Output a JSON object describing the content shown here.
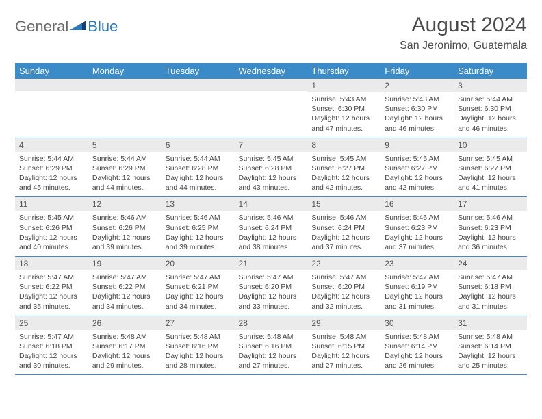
{
  "brand": {
    "part1": "General",
    "part2": "Blue"
  },
  "title": "August 2024",
  "location": "San Jeronimo, Guatemala",
  "colors": {
    "header_bg": "#3b8bc8",
    "header_text": "#ffffff",
    "daynum_bg": "#ebebeb",
    "body_text": "#444444",
    "rule": "#3b8bc8",
    "brand_gray": "#6a6a6a",
    "brand_blue": "#2b7bbf"
  },
  "day_headers": [
    "Sunday",
    "Monday",
    "Tuesday",
    "Wednesday",
    "Thursday",
    "Friday",
    "Saturday"
  ],
  "weeks": [
    [
      {
        "n": "",
        "sr": "",
        "ss": "",
        "dl": ""
      },
      {
        "n": "",
        "sr": "",
        "ss": "",
        "dl": ""
      },
      {
        "n": "",
        "sr": "",
        "ss": "",
        "dl": ""
      },
      {
        "n": "",
        "sr": "",
        "ss": "",
        "dl": ""
      },
      {
        "n": "1",
        "sr": "Sunrise: 5:43 AM",
        "ss": "Sunset: 6:30 PM",
        "dl": "Daylight: 12 hours and 47 minutes."
      },
      {
        "n": "2",
        "sr": "Sunrise: 5:43 AM",
        "ss": "Sunset: 6:30 PM",
        "dl": "Daylight: 12 hours and 46 minutes."
      },
      {
        "n": "3",
        "sr": "Sunrise: 5:44 AM",
        "ss": "Sunset: 6:30 PM",
        "dl": "Daylight: 12 hours and 46 minutes."
      }
    ],
    [
      {
        "n": "4",
        "sr": "Sunrise: 5:44 AM",
        "ss": "Sunset: 6:29 PM",
        "dl": "Daylight: 12 hours and 45 minutes."
      },
      {
        "n": "5",
        "sr": "Sunrise: 5:44 AM",
        "ss": "Sunset: 6:29 PM",
        "dl": "Daylight: 12 hours and 44 minutes."
      },
      {
        "n": "6",
        "sr": "Sunrise: 5:44 AM",
        "ss": "Sunset: 6:28 PM",
        "dl": "Daylight: 12 hours and 44 minutes."
      },
      {
        "n": "7",
        "sr": "Sunrise: 5:45 AM",
        "ss": "Sunset: 6:28 PM",
        "dl": "Daylight: 12 hours and 43 minutes."
      },
      {
        "n": "8",
        "sr": "Sunrise: 5:45 AM",
        "ss": "Sunset: 6:27 PM",
        "dl": "Daylight: 12 hours and 42 minutes."
      },
      {
        "n": "9",
        "sr": "Sunrise: 5:45 AM",
        "ss": "Sunset: 6:27 PM",
        "dl": "Daylight: 12 hours and 42 minutes."
      },
      {
        "n": "10",
        "sr": "Sunrise: 5:45 AM",
        "ss": "Sunset: 6:27 PM",
        "dl": "Daylight: 12 hours and 41 minutes."
      }
    ],
    [
      {
        "n": "11",
        "sr": "Sunrise: 5:45 AM",
        "ss": "Sunset: 6:26 PM",
        "dl": "Daylight: 12 hours and 40 minutes."
      },
      {
        "n": "12",
        "sr": "Sunrise: 5:46 AM",
        "ss": "Sunset: 6:26 PM",
        "dl": "Daylight: 12 hours and 39 minutes."
      },
      {
        "n": "13",
        "sr": "Sunrise: 5:46 AM",
        "ss": "Sunset: 6:25 PM",
        "dl": "Daylight: 12 hours and 39 minutes."
      },
      {
        "n": "14",
        "sr": "Sunrise: 5:46 AM",
        "ss": "Sunset: 6:24 PM",
        "dl": "Daylight: 12 hours and 38 minutes."
      },
      {
        "n": "15",
        "sr": "Sunrise: 5:46 AM",
        "ss": "Sunset: 6:24 PM",
        "dl": "Daylight: 12 hours and 37 minutes."
      },
      {
        "n": "16",
        "sr": "Sunrise: 5:46 AM",
        "ss": "Sunset: 6:23 PM",
        "dl": "Daylight: 12 hours and 37 minutes."
      },
      {
        "n": "17",
        "sr": "Sunrise: 5:46 AM",
        "ss": "Sunset: 6:23 PM",
        "dl": "Daylight: 12 hours and 36 minutes."
      }
    ],
    [
      {
        "n": "18",
        "sr": "Sunrise: 5:47 AM",
        "ss": "Sunset: 6:22 PM",
        "dl": "Daylight: 12 hours and 35 minutes."
      },
      {
        "n": "19",
        "sr": "Sunrise: 5:47 AM",
        "ss": "Sunset: 6:22 PM",
        "dl": "Daylight: 12 hours and 34 minutes."
      },
      {
        "n": "20",
        "sr": "Sunrise: 5:47 AM",
        "ss": "Sunset: 6:21 PM",
        "dl": "Daylight: 12 hours and 34 minutes."
      },
      {
        "n": "21",
        "sr": "Sunrise: 5:47 AM",
        "ss": "Sunset: 6:20 PM",
        "dl": "Daylight: 12 hours and 33 minutes."
      },
      {
        "n": "22",
        "sr": "Sunrise: 5:47 AM",
        "ss": "Sunset: 6:20 PM",
        "dl": "Daylight: 12 hours and 32 minutes."
      },
      {
        "n": "23",
        "sr": "Sunrise: 5:47 AM",
        "ss": "Sunset: 6:19 PM",
        "dl": "Daylight: 12 hours and 31 minutes."
      },
      {
        "n": "24",
        "sr": "Sunrise: 5:47 AM",
        "ss": "Sunset: 6:18 PM",
        "dl": "Daylight: 12 hours and 31 minutes."
      }
    ],
    [
      {
        "n": "25",
        "sr": "Sunrise: 5:47 AM",
        "ss": "Sunset: 6:18 PM",
        "dl": "Daylight: 12 hours and 30 minutes."
      },
      {
        "n": "26",
        "sr": "Sunrise: 5:48 AM",
        "ss": "Sunset: 6:17 PM",
        "dl": "Daylight: 12 hours and 29 minutes."
      },
      {
        "n": "27",
        "sr": "Sunrise: 5:48 AM",
        "ss": "Sunset: 6:16 PM",
        "dl": "Daylight: 12 hours and 28 minutes."
      },
      {
        "n": "28",
        "sr": "Sunrise: 5:48 AM",
        "ss": "Sunset: 6:16 PM",
        "dl": "Daylight: 12 hours and 27 minutes."
      },
      {
        "n": "29",
        "sr": "Sunrise: 5:48 AM",
        "ss": "Sunset: 6:15 PM",
        "dl": "Daylight: 12 hours and 27 minutes."
      },
      {
        "n": "30",
        "sr": "Sunrise: 5:48 AM",
        "ss": "Sunset: 6:14 PM",
        "dl": "Daylight: 12 hours and 26 minutes."
      },
      {
        "n": "31",
        "sr": "Sunrise: 5:48 AM",
        "ss": "Sunset: 6:14 PM",
        "dl": "Daylight: 12 hours and 25 minutes."
      }
    ]
  ]
}
